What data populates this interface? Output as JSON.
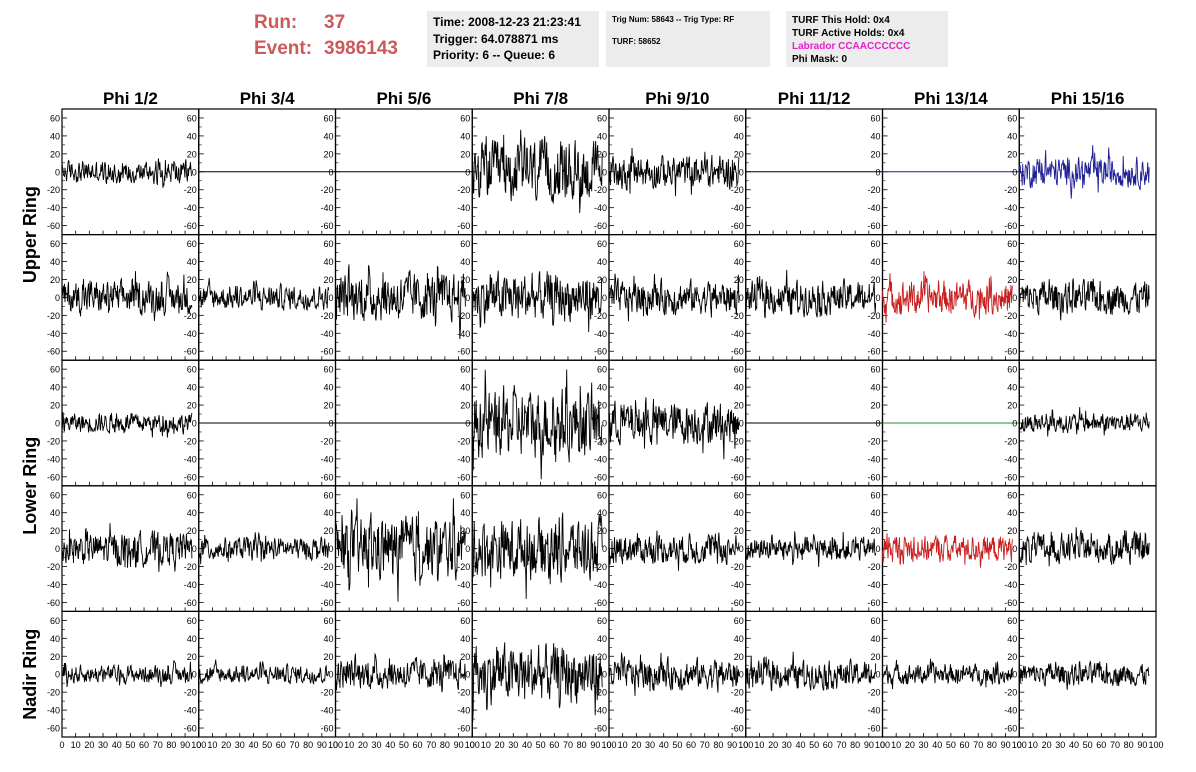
{
  "header": {
    "run_label": "Run:",
    "run_value": "37",
    "event_label": "Event:",
    "event_value": "3986143",
    "time": "Time: 2008-12-23 21:23:41",
    "trigger": "Trigger: 64.078871 ms",
    "priority_queue": "Priority: 6 -- Queue: 6",
    "trig_num_type": "Trig Num: 58643 -- Trig Type: RF",
    "turf": "TURF: 58652",
    "turf_this_hold": "TURF This Hold: 0x4",
    "turf_active_holds": "TURF Active Holds: 0x4",
    "labrador": "Labrador CCAACCCCCC",
    "phi_mask": "Phi Mask: 0"
  },
  "colors": {
    "header_red": "#cc5a5a",
    "labrador_magenta": "#e61ecb",
    "trace_black": "#000000",
    "trace_blue": "#1e1e96",
    "trace_red": "#c81e1e",
    "trace_green": "#1e961e"
  },
  "chart_data": {
    "type": "line",
    "title": "",
    "columns": [
      "Phi 1/2",
      "Phi 3/4",
      "Phi 5/6",
      "Phi 7/8",
      "Phi 9/10",
      "Phi 11/12",
      "Phi 13/14",
      "Phi 15/16"
    ],
    "ring_labels": [
      "Upper Ring",
      "Lower Ring",
      "Nadir Ring"
    ],
    "xlim": [
      0,
      100
    ],
    "ylim": [
      -70,
      70
    ],
    "x_ticks": [
      "0",
      "10",
      "20",
      "30",
      "40",
      "50",
      "60",
      "70",
      "80",
      "90",
      "100"
    ],
    "y_ticks": [
      "-60",
      "-40",
      "-20",
      "0",
      "20",
      "40",
      "60"
    ],
    "rows": [
      {
        "traces": [
          {
            "amplitude": 15,
            "flat": false,
            "color": "black"
          },
          {
            "amplitude": 0,
            "flat": true,
            "color": "black"
          },
          {
            "amplitude": 0,
            "flat": true,
            "color": "black"
          },
          {
            "amplitude": 40,
            "flat": false,
            "color": "black"
          },
          {
            "amplitude": 22,
            "flat": false,
            "color": "black"
          },
          {
            "amplitude": 0,
            "flat": true,
            "color": "black"
          },
          {
            "amplitude": 0,
            "flat": true,
            "color": "blue"
          },
          {
            "amplitude": 20,
            "flat": false,
            "color": "blue"
          }
        ]
      },
      {
        "traces": [
          {
            "amplitude": 22,
            "flat": false,
            "color": "black"
          },
          {
            "amplitude": 16,
            "flat": false,
            "color": "black"
          },
          {
            "amplitude": 32,
            "flat": false,
            "color": "black"
          },
          {
            "amplitude": 32,
            "flat": false,
            "color": "black"
          },
          {
            "amplitude": 22,
            "flat": false,
            "color": "black"
          },
          {
            "amplitude": 22,
            "flat": false,
            "color": "black"
          },
          {
            "amplitude": 22,
            "flat": false,
            "color": "red"
          },
          {
            "amplitude": 22,
            "flat": false,
            "color": "black"
          }
        ]
      },
      {
        "traces": [
          {
            "amplitude": 13,
            "flat": false,
            "color": "black"
          },
          {
            "amplitude": 0,
            "flat": true,
            "color": "black"
          },
          {
            "amplitude": 0,
            "flat": true,
            "color": "black"
          },
          {
            "amplitude": 45,
            "flat": false,
            "color": "black"
          },
          {
            "amplitude": 28,
            "flat": false,
            "color": "black"
          },
          {
            "amplitude": 0,
            "flat": true,
            "color": "black"
          },
          {
            "amplitude": 0,
            "flat": true,
            "color": "green"
          },
          {
            "amplitude": 13,
            "flat": false,
            "color": "black"
          }
        ]
      },
      {
        "traces": [
          {
            "amplitude": 22,
            "flat": false,
            "color": "black"
          },
          {
            "amplitude": 15,
            "flat": false,
            "color": "black"
          },
          {
            "amplitude": 40,
            "flat": false,
            "color": "black"
          },
          {
            "amplitude": 40,
            "flat": false,
            "color": "black"
          },
          {
            "amplitude": 20,
            "flat": false,
            "color": "black"
          },
          {
            "amplitude": 16,
            "flat": false,
            "color": "black"
          },
          {
            "amplitude": 18,
            "flat": false,
            "color": "red"
          },
          {
            "amplitude": 20,
            "flat": false,
            "color": "black"
          }
        ]
      },
      {
        "traces": [
          {
            "amplitude": 12,
            "flat": false,
            "color": "black"
          },
          {
            "amplitude": 12,
            "flat": false,
            "color": "black"
          },
          {
            "amplitude": 20,
            "flat": false,
            "color": "black"
          },
          {
            "amplitude": 38,
            "flat": false,
            "color": "black"
          },
          {
            "amplitude": 20,
            "flat": false,
            "color": "black"
          },
          {
            "amplitude": 18,
            "flat": false,
            "color": "black"
          },
          {
            "amplitude": 13,
            "flat": false,
            "color": "black"
          },
          {
            "amplitude": 15,
            "flat": false,
            "color": "black"
          }
        ]
      }
    ]
  }
}
